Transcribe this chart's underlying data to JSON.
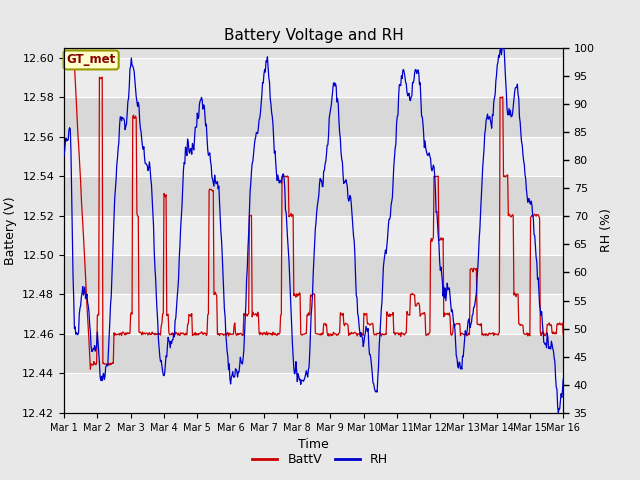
{
  "title": "Battery Voltage and RH",
  "xlabel": "Time",
  "ylabel_left": "Battery (V)",
  "ylabel_right": "RH (%)",
  "annotation": "GT_met",
  "ylim_left": [
    12.42,
    12.605
  ],
  "ylim_right": [
    35,
    100
  ],
  "yticks_left": [
    12.42,
    12.44,
    12.46,
    12.48,
    12.5,
    12.52,
    12.54,
    12.56,
    12.58,
    12.6
  ],
  "yticks_right": [
    35,
    40,
    45,
    50,
    55,
    60,
    65,
    70,
    75,
    80,
    85,
    90,
    95,
    100
  ],
  "xtick_labels": [
    "Mar 1",
    "Mar 2",
    "Mar 3",
    "Mar 4",
    "Mar 5",
    "Mar 6",
    "Mar 7",
    "Mar 8",
    "Mar 9",
    "Mar 10",
    "Mar 11",
    "Mar 12",
    "Mar 13",
    "Mar 14",
    "Mar 15",
    "Mar 16"
  ],
  "n_days": 15,
  "bg_color": "#e8e8e8",
  "plot_bg_color": "#e0e0e0",
  "band_color_light": "#ececec",
  "band_color_dark": "#d8d8d8",
  "line_color_batt": "#cc0000",
  "line_color_rh": "#0000cc",
  "annotation_bg": "#ffffcc",
  "annotation_border": "#999900",
  "annotation_text_color": "#880000",
  "legend_batt_color": "#cc0000",
  "legend_rh_color": "#0000cc",
  "grid_color": "#ffffff"
}
